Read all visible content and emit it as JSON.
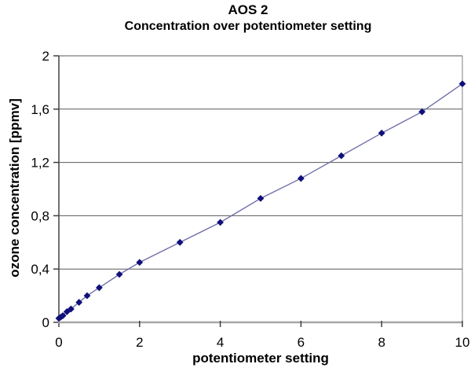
{
  "chart_data": {
    "type": "line",
    "title": "AOS 2",
    "subtitle": "Concentration over potentiometer setting",
    "xlabel": "potentiometer setting",
    "ylabel": "ozone concentration [ppmv]",
    "xlim": [
      0,
      10
    ],
    "ylim": [
      0,
      2
    ],
    "grid": "horizontal",
    "legend": "none",
    "x_ticks": {
      "values": [
        0,
        2,
        4,
        6,
        8,
        10
      ],
      "labels": [
        "0",
        "2",
        "4",
        "6",
        "8",
        "10"
      ]
    },
    "y_ticks": {
      "values": [
        0,
        0.4,
        0.8,
        1.2,
        1.6,
        2
      ],
      "labels": [
        "0",
        "0,4",
        "0,8",
        "1,2",
        "1,6",
        "2"
      ]
    },
    "series": [
      {
        "name": "ozone concentration",
        "marker": "diamond",
        "line_color": "#7070aa",
        "marker_color": "#10107a",
        "x": [
          0,
          0.05,
          0.1,
          0.2,
          0.3,
          0.5,
          0.7,
          1,
          1.5,
          2,
          3,
          4,
          5,
          6,
          7,
          8,
          9,
          10
        ],
        "y": [
          0.03,
          0.04,
          0.05,
          0.08,
          0.1,
          0.15,
          0.2,
          0.26,
          0.36,
          0.45,
          0.6,
          0.75,
          0.93,
          1.08,
          1.25,
          1.42,
          1.58,
          1.79
        ]
      }
    ]
  }
}
